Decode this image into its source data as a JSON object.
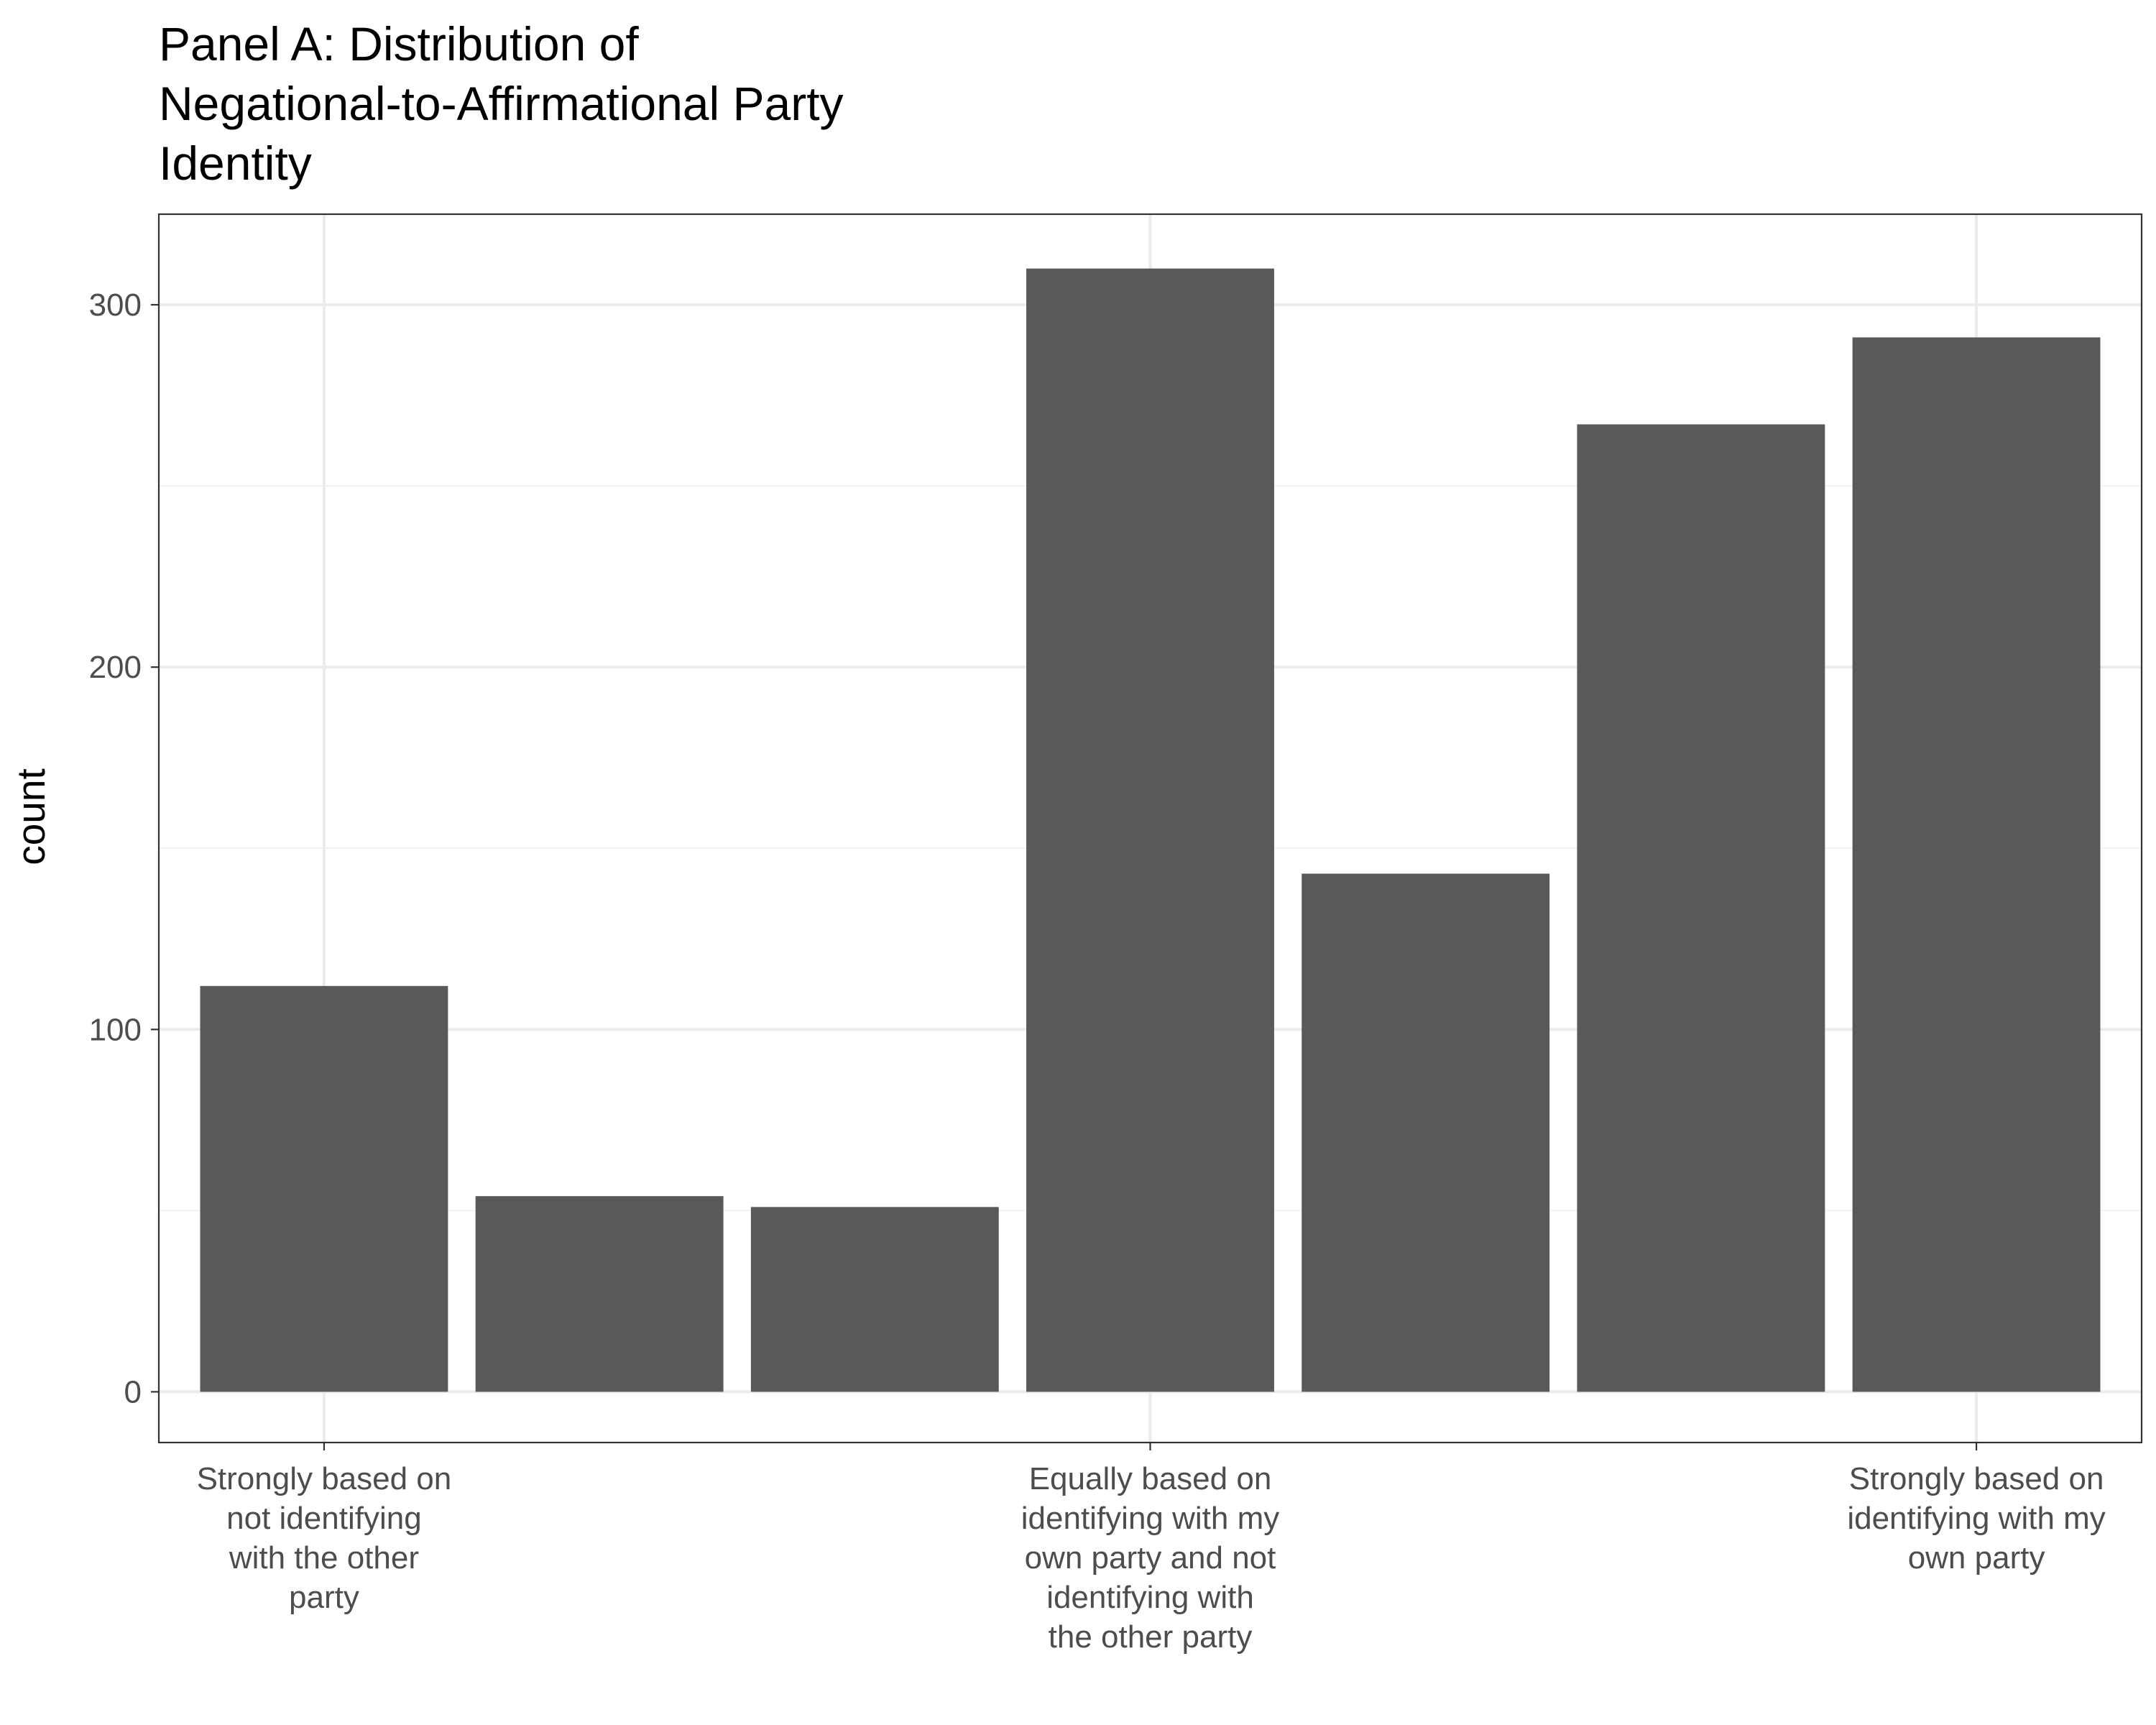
{
  "chart_data": {
    "type": "bar",
    "title_lines": [
      "Panel A: Distribution of",
      "Negational-to-Affirmational Party",
      "Identity"
    ],
    "xlabel": "",
    "ylabel": "count",
    "categories": [
      "1",
      "2",
      "3",
      "4",
      "5",
      "6",
      "7"
    ],
    "values": [
      112,
      54,
      51,
      310,
      143,
      267,
      291
    ],
    "ylim": [
      -14,
      325
    ],
    "yticks": [
      0,
      100,
      200,
      300
    ],
    "x_tick_labels": [
      {
        "category_index": 0,
        "lines": [
          "Strongly based on",
          "not identifying",
          "with the other",
          "party"
        ]
      },
      {
        "category_index": 3,
        "lines": [
          "Equally based on",
          "identifying with my",
          "own party and not",
          "identifying with",
          "the other party"
        ]
      },
      {
        "category_index": 6,
        "lines": [
          "Strongly based on",
          "identifying with my",
          "own party"
        ]
      }
    ],
    "grid": true,
    "legend": "none",
    "colors": {
      "bar": "#595959",
      "grid_major": "#ebebeb",
      "grid_minor": "#f2f2f2",
      "panel_border": "#333333",
      "tick": "#333333"
    }
  }
}
